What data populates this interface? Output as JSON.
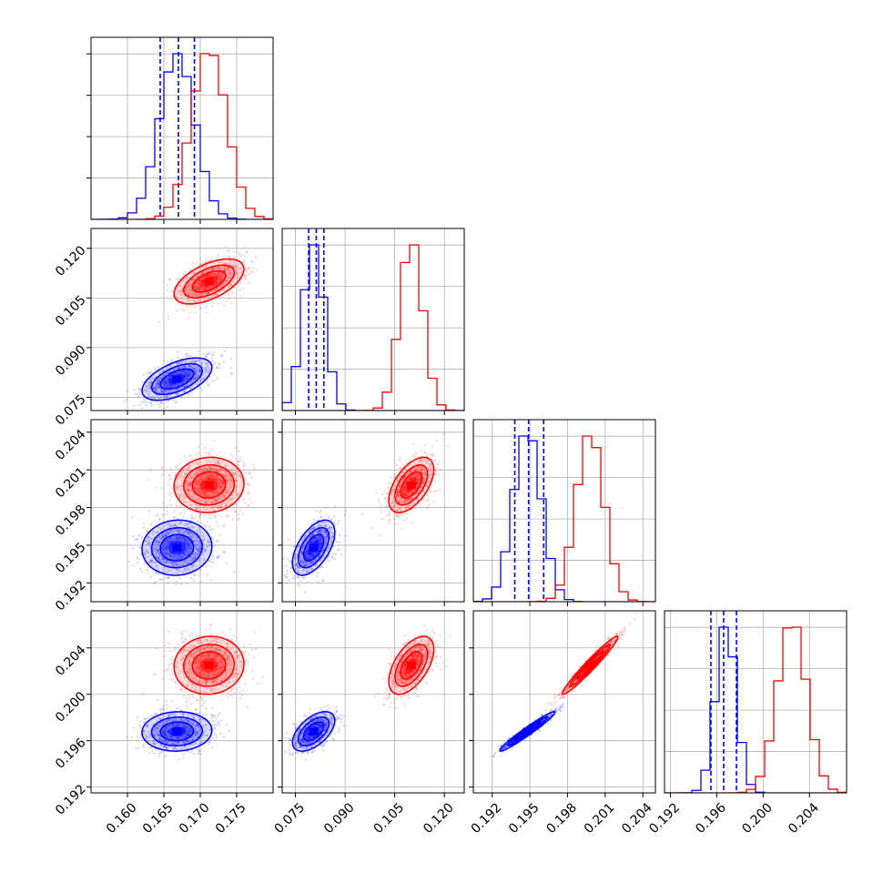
{
  "chart_data": {
    "type": "corner",
    "grid": true,
    "colors": {
      "series_a": "#0000ff",
      "series_b": "#ff0000"
    },
    "parameters": [
      {
        "id": "p0",
        "range": [
          0.155,
          0.18
        ],
        "ticks": [
          "0.160",
          "0.165",
          "0.170",
          "0.175"
        ],
        "tick_values": [
          0.16,
          0.165,
          0.17,
          0.175
        ]
      },
      {
        "id": "p1",
        "range": [
          0.071,
          0.126
        ],
        "ticks": [
          "0.075",
          "0.090",
          "0.105",
          "0.120"
        ],
        "tick_values": [
          0.075,
          0.09,
          0.105,
          0.12
        ]
      },
      {
        "id": "p2",
        "range": [
          0.1905,
          0.205
        ],
        "ticks": [
          "0.192",
          "0.195",
          "0.198",
          "0.201",
          "0.204"
        ],
        "tick_values": [
          0.192,
          0.195,
          0.198,
          0.201,
          0.204
        ]
      },
      {
        "id": "p3",
        "range": [
          0.1915,
          0.2072
        ],
        "ticks": [
          "0.192",
          "0.196",
          "0.200",
          "0.204"
        ],
        "tick_values": [
          0.192,
          0.196,
          0.2,
          0.204
        ]
      }
    ],
    "series": [
      {
        "color_key": "series_a",
        "mean": [
          0.1668,
          0.0805,
          0.1948,
          0.1968
        ],
        "std": [
          0.0024,
          0.0032,
          0.0011,
          0.00085
        ],
        "quantile_lines": [
          [
            0.1645,
            0.167,
            0.1692
          ],
          [
            0.079,
            0.0813,
            0.0836
          ],
          [
            0.1938,
            0.1949,
            0.1961
          ],
          [
            0.1955,
            0.1966,
            0.1977
          ]
        ]
      },
      {
        "color_key": "series_b",
        "mean": [
          0.1712,
          0.11,
          0.1998,
          0.2025
        ],
        "std": [
          0.0024,
          0.0034,
          0.0011,
          0.00125
        ]
      }
    ],
    "correlations": [
      {
        "pair": [
          0,
          1
        ],
        "rho": [
          0.55,
          0.55
        ]
      },
      {
        "pair": [
          0,
          2
        ],
        "rho": [
          0.05,
          0.05
        ]
      },
      {
        "pair": [
          0,
          3
        ],
        "rho": [
          0.05,
          0.05
        ]
      },
      {
        "pair": [
          1,
          2
        ],
        "rho": [
          0.55,
          0.55
        ]
      },
      {
        "pair": [
          1,
          3
        ],
        "rho": [
          0.55,
          0.55
        ]
      },
      {
        "pair": [
          2,
          3
        ],
        "rho": [
          0.97,
          0.97
        ]
      }
    ]
  }
}
